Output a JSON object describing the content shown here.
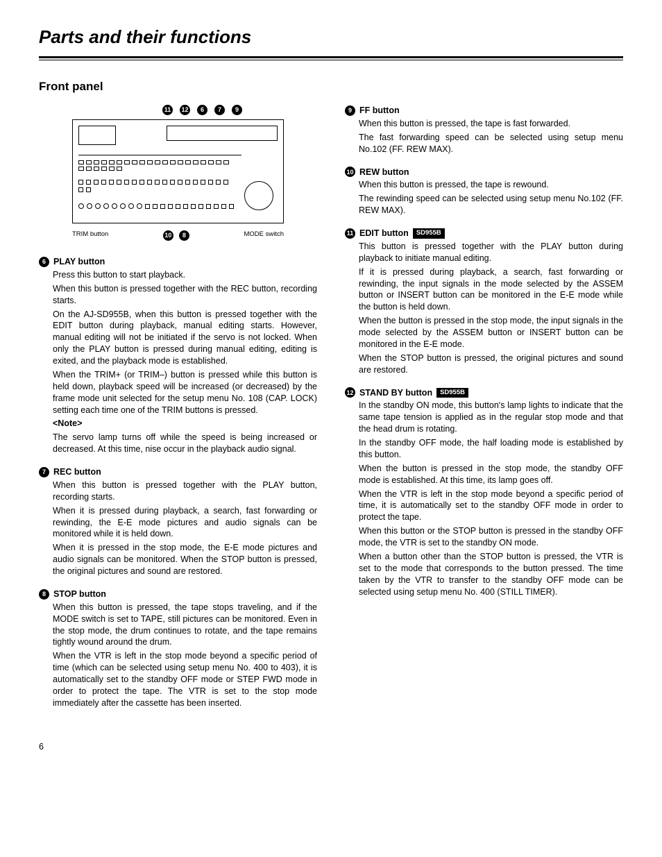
{
  "page": {
    "title": "Parts and their functions",
    "subheading": "Front panel",
    "number": "6"
  },
  "diagram": {
    "callouts_top": [
      "11",
      "12",
      "6",
      "7",
      "9"
    ],
    "callouts_bottom": [
      "10",
      "8"
    ],
    "label_left": "TRIM button",
    "label_right": "MODE switch"
  },
  "items_left": [
    {
      "num": "6",
      "title": "PLAY button",
      "paras": [
        "Press this button to start playback.",
        "When this button is pressed together with the REC button, recording starts.",
        "On the AJ-SD955B, when this button is pressed together with the EDIT button during playback, manual editing starts. However, manual editing will not be initiated if the servo is not locked.  When only the PLAY button is pressed during manual editing, editing is exited, and the playback mode is established.",
        "When the TRIM+ (or TRIM–) button is pressed while this button is held down, playback speed will be increased (or decreased) by the frame mode unit selected for the setup menu No. 108 (CAP. LOCK) setting each time one of the TRIM buttons is pressed."
      ],
      "note_label": "<Note>",
      "note": "The servo lamp turns off while the speed is being increased or decreased.  At this time, nise occur in the playback audio signal."
    },
    {
      "num": "7",
      "title": "REC button",
      "paras": [
        "When this button is pressed together with the PLAY button, recording starts.",
        "When it is pressed during playback, a search, fast forwarding or rewinding, the E-E mode pictures and audio signals can be monitored while it is held down.",
        "When it is pressed in the stop mode, the E-E mode pictures and audio signals can be monitored. When the STOP button is pressed, the original pictures and sound are restored."
      ]
    },
    {
      "num": "8",
      "title": "STOP button",
      "paras": [
        "When this button is pressed, the tape stops traveling, and if the MODE switch is set to TAPE, still pictures can be monitored.  Even in the stop mode, the drum continues to rotate, and the tape remains tightly wound around the drum.",
        "When the VTR is left in the stop mode beyond a specific period of time (which can be selected using setup menu No. 400 to 403), it is automatically set to the standby OFF mode or STEP FWD mode in order to protect the tape.  The VTR is set to the stop mode immediately after the cassette has been inserted."
      ]
    }
  ],
  "items_right": [
    {
      "num": "9",
      "title": "FF button",
      "paras": [
        "When this button is pressed, the tape is fast forwarded.",
        "The fast forwarding speed can be selected using setup menu No.102 (FF. REW MAX)."
      ]
    },
    {
      "num": "10",
      "title": "REW button",
      "paras": [
        "When this button is pressed, the tape is rewound.",
        "The rewinding speed can be selected using setup menu No.102 (FF. REW MAX)."
      ]
    },
    {
      "num": "11",
      "title": "EDIT button",
      "badge": "SD955B",
      "paras": [
        "This button is pressed together with the PLAY button during playback to initiate manual editing.",
        "If it is pressed during playback, a search, fast forwarding or rewinding, the input signals in the mode selected by the ASSEM button or INSERT button can be monitored in the E-E mode while the button is held down.",
        "When the button is pressed in the stop mode, the input signals in the mode selected by the ASSEM button or INSERT button can be monitored in the E-E mode.",
        "When the STOP button is pressed, the original pictures and sound are restored."
      ]
    },
    {
      "num": "12",
      "title": "STAND BY button",
      "badge": "SD955B",
      "paras": [
        "In the standby ON mode, this button's lamp lights to indicate that the same tape tension is applied as in the regular stop mode and that the head drum is rotating.",
        "In the standby OFF mode, the half loading mode is established by this button.",
        "When the button is pressed in the stop mode, the standby OFF mode is established. At this time, its lamp goes off.",
        "When the VTR is left in the stop mode beyond a specific period of time, it is automatically set to the standby OFF mode in order to protect the tape.",
        "When this button or the STOP button is pressed in the standby OFF mode, the VTR is set to the standby ON mode.",
        "When a button other than the STOP button is pressed, the VTR is set to the mode that corresponds to the button pressed. The time taken by the VTR to transfer to the standby OFF mode can be selected using setup menu No. 400 (STILL TIMER)."
      ]
    }
  ]
}
